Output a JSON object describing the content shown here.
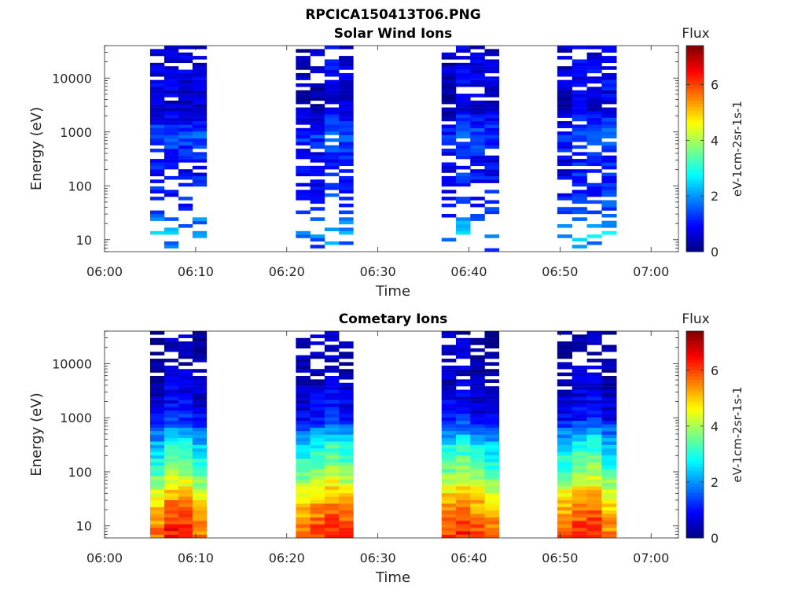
{
  "figure_title": "RPCICA150413T06.PNG",
  "chart_data": [
    {
      "type": "heatmap",
      "title": "Solar Wind Ions",
      "xlabel": "Time",
      "ylabel": "Energy (eV)",
      "x_ticks": [
        "06:00",
        "06:10",
        "06:20",
        "06:30",
        "06:40",
        "06:50",
        "07:00"
      ],
      "x_tick_minutes": [
        0,
        10,
        20,
        30,
        40,
        50,
        60
      ],
      "xlim_minutes": [
        0,
        63
      ],
      "y_scale": "log",
      "ylim": [
        6,
        40000
      ],
      "y_ticks": [
        "10",
        "100",
        "1000",
        "10000"
      ],
      "y_tick_values": [
        10,
        100,
        1000,
        10000
      ],
      "colorbar": {
        "title": "Flux",
        "label": "eV-1cm-2sr-1s-1",
        "ticks": [
          "0",
          "2",
          "4",
          "6"
        ],
        "tick_values": [
          0,
          2,
          4,
          6
        ],
        "range": [
          0,
          7.4
        ],
        "colormap": "jet"
      },
      "time_blocks_minutes": [
        {
          "start": 5.0,
          "end": 11.2,
          "columns": 4
        },
        {
          "start": 21.0,
          "end": 27.3,
          "columns": 4
        },
        {
          "start": 37.0,
          "end": 43.3,
          "columns": 4
        },
        {
          "start": 49.7,
          "end": 56.2,
          "columns": 4
        }
      ],
      "energy_profile": [
        {
          "energy": 40000,
          "flux": 0.6,
          "fill": 0.7
        },
        {
          "energy": 10000,
          "flux": 0.7,
          "fill": 0.8
        },
        {
          "energy": 3000,
          "flux": 0.5,
          "fill": 0.9
        },
        {
          "energy": 800,
          "flux": 1.5,
          "fill": 0.9
        },
        {
          "energy": 300,
          "flux": 0.9,
          "fill": 0.7
        },
        {
          "energy": 100,
          "flux": 1.0,
          "fill": 0.6
        },
        {
          "energy": 40,
          "flux": 1.2,
          "fill": 0.4
        },
        {
          "energy": 20,
          "flux": 1.8,
          "fill": 0.35
        },
        {
          "energy": 12,
          "flux": 2.2,
          "fill": 0.4
        },
        {
          "energy": 6,
          "flux": 1.2,
          "fill": 0.2
        }
      ]
    },
    {
      "type": "heatmap",
      "title": "Cometary Ions",
      "xlabel": "Time",
      "ylabel": "Energy (eV)",
      "x_ticks": [
        "06:00",
        "06:10",
        "06:20",
        "06:30",
        "06:40",
        "06:50",
        "07:00"
      ],
      "x_tick_minutes": [
        0,
        10,
        20,
        30,
        40,
        50,
        60
      ],
      "xlim_minutes": [
        0,
        63
      ],
      "y_scale": "log",
      "ylim": [
        6,
        40000
      ],
      "y_ticks": [
        "10",
        "100",
        "1000",
        "10000"
      ],
      "y_tick_values": [
        10,
        100,
        1000,
        10000
      ],
      "colorbar": {
        "title": "Flux",
        "label": "eV-1cm-2sr-1s-1",
        "ticks": [
          "0",
          "2",
          "4",
          "6"
        ],
        "tick_values": [
          0,
          2,
          4,
          6
        ],
        "range": [
          0,
          7.4
        ],
        "colormap": "jet"
      },
      "time_blocks_minutes": [
        {
          "start": 5.0,
          "end": 11.2,
          "columns": 4
        },
        {
          "start": 21.0,
          "end": 27.3,
          "columns": 4
        },
        {
          "start": 37.0,
          "end": 43.3,
          "columns": 4
        },
        {
          "start": 49.7,
          "end": 56.2,
          "columns": 4
        }
      ],
      "energy_profile": [
        {
          "energy": 40000,
          "flux": 0.3,
          "fill": 0.6
        },
        {
          "energy": 10000,
          "flux": 0.3,
          "fill": 0.7
        },
        {
          "energy": 3000,
          "flux": 0.6,
          "fill": 1.0
        },
        {
          "energy": 1000,
          "flux": 1.0,
          "fill": 1.0
        },
        {
          "energy": 300,
          "flux": 2.8,
          "fill": 1.0
        },
        {
          "energy": 100,
          "flux": 3.6,
          "fill": 1.0
        },
        {
          "energy": 40,
          "flux": 4.8,
          "fill": 1.0
        },
        {
          "energy": 20,
          "flux": 5.4,
          "fill": 1.0
        },
        {
          "energy": 10,
          "flux": 5.9,
          "fill": 1.0
        },
        {
          "energy": 6,
          "flux": 6.0,
          "fill": 1.0
        }
      ]
    }
  ]
}
